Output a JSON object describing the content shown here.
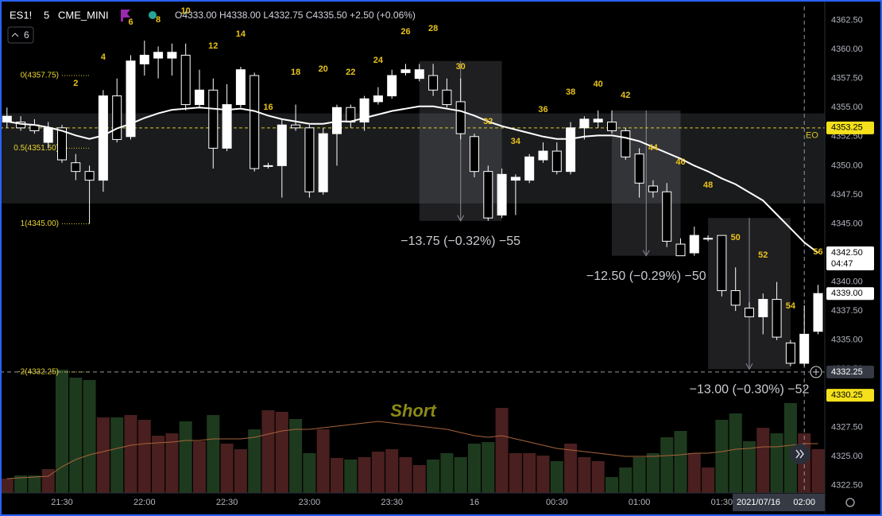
{
  "header": {
    "symbol": "ES1!",
    "interval": "5",
    "exchange": "CME_MINI",
    "ohlc": "O4333.00 H4338.00 L4332.75 C4335.50 +2.50 (+0.06%)",
    "indicators": "6"
  },
  "chart_data": {
    "type": "candlestick",
    "categories": [
      null,
      null,
      null,
      null,
      "21:30",
      null,
      null,
      null,
      null,
      null,
      "22:00",
      null,
      null,
      null,
      null,
      null,
      "22:30",
      null,
      null,
      null,
      null,
      null,
      "23:00",
      null,
      null,
      null,
      null,
      null,
      "23:30",
      null,
      null,
      null,
      null,
      null,
      "16",
      null,
      null,
      null,
      null,
      null,
      "00:30",
      null,
      null,
      null,
      null,
      null,
      "01:00",
      null,
      null,
      null,
      null,
      null,
      "01:30",
      null,
      null,
      null,
      null,
      null,
      "02:00",
      null
    ],
    "open": [
      4353.75,
      4353.75,
      4353.5,
      4352.0,
      4353.25,
      4350.25,
      4349.5,
      4348.75,
      4356.0,
      4352.5,
      4358.75,
      4359.25,
      4359.25,
      4359.5,
      4355.25,
      4356.5,
      4351.5,
      4355.25,
      4357.75,
      4350.0,
      4350.0,
      4353.5,
      4353.25,
      4347.75,
      4352.75,
      4355.0,
      4353.75,
      4355.5,
      4356.0,
      4358.0,
      4357.5,
      4357.75,
      4356.5,
      4355.5,
      4352.5,
      4349.5,
      4345.75,
      4348.75,
      4348.75,
      4350.5,
      4351.25,
      4349.5,
      4353.25,
      4353.75,
      4353.75,
      4353.0,
      4351.0,
      4348.25,
      4347.75,
      4343.25,
      4342.5,
      4343.75,
      4344.0,
      4339.25,
      4337.75,
      4337.0,
      4338.5,
      4334.75,
      4333.0,
      4335.75
    ],
    "high": [
      4355.0,
      4354.25,
      4354.0,
      4353.75,
      4353.5,
      4351.0,
      4350.0,
      4356.5,
      4357.5,
      4359.5,
      4360.75,
      4360.25,
      4360.5,
      4360.5,
      4358.25,
      4357.5,
      4357.0,
      4358.5,
      4358.0,
      4350.25,
      4354.0,
      4355.25,
      4353.5,
      4353.25,
      4355.25,
      4355.25,
      4356.0,
      4356.75,
      4358.25,
      4358.75,
      4358.75,
      4358.75,
      4357.5,
      4357.5,
      4352.75,
      4350.0,
      4349.75,
      4349.25,
      4351.0,
      4352.0,
      4352.0,
      4353.75,
      4354.25,
      4354.75,
      4354.75,
      4353.25,
      4351.5,
      4348.75,
      4348.5,
      4343.75,
      4344.75,
      4344.0,
      4344.0,
      4341.25,
      4338.25,
      4339.0,
      4340.0,
      4335.0,
      4338.0,
      4339.75
    ],
    "low": [
      4353.25,
      4353.0,
      4352.75,
      4351.5,
      4350.25,
      4348.75,
      4345.0,
      4347.75,
      4352.0,
      4352.25,
      4357.75,
      4357.5,
      4357.75,
      4354.75,
      4355.0,
      4349.75,
      4351.25,
      4355.0,
      4349.5,
      4349.75,
      4347.25,
      4353.0,
      4347.25,
      4347.5,
      4350.0,
      4353.25,
      4353.0,
      4355.25,
      4355.75,
      4357.75,
      4357.25,
      4356.0,
      4355.0,
      4352.25,
      4349.0,
      4345.25,
      4345.5,
      4345.75,
      4348.5,
      4350.25,
      4349.25,
      4349.25,
      4352.25,
      4353.25,
      4352.75,
      4350.5,
      4347.25,
      4347.25,
      4343.0,
      4342.25,
      4342.25,
      4343.5,
      4338.75,
      4337.5,
      4337.0,
      4335.5,
      4335.0,
      4332.75,
      4332.75,
      4335.5
    ],
    "close": [
      4354.25,
      4353.25,
      4353.0,
      4353.25,
      4350.5,
      4349.5,
      4348.75,
      4356.0,
      4352.25,
      4359.0,
      4359.5,
      4359.75,
      4359.75,
      4355.25,
      4356.5,
      4351.5,
      4355.25,
      4358.25,
      4349.75,
      4350.0,
      4353.5,
      4353.25,
      4347.75,
      4352.75,
      4355.0,
      4353.75,
      4355.75,
      4356.0,
      4357.75,
      4358.25,
      4358.25,
      4356.5,
      4355.25,
      4352.75,
      4349.5,
      4345.5,
      4349.25,
      4349.0,
      4350.75,
      4351.25,
      4349.5,
      4353.25,
      4354.0,
      4354.0,
      4353.0,
      4350.75,
      4348.5,
      4347.75,
      4343.5,
      4342.25,
      4344.0,
      4343.75,
      4339.25,
      4338.0,
      4337.0,
      4338.5,
      4335.25,
      4333.0,
      4335.5,
      4339.0
    ],
    "up_color": "#ffffff",
    "down_color": "#000000",
    "outline_color": "#ffffff",
    "ma": {
      "color": "#ffffff",
      "values": [
        4353.8,
        4353.6,
        4353.5,
        4353.3,
        4353.0,
        4352.6,
        4352.3,
        4352.6,
        4353.2,
        4353.6,
        4354.1,
        4354.5,
        4354.8,
        4354.9,
        4355.0,
        4354.9,
        4354.8,
        4354.9,
        4354.7,
        4354.3,
        4354.0,
        4353.8,
        4353.6,
        4353.6,
        4353.8,
        4353.8,
        4354.1,
        4354.4,
        4354.7,
        4354.9,
        4355.1,
        4355.1,
        4354.9,
        4354.7,
        4354.3,
        4353.8,
        4353.4,
        4353.1,
        4352.8,
        4352.5,
        4352.3,
        4352.3,
        4352.5,
        4352.6,
        4352.6,
        4352.4,
        4352.1,
        4351.6,
        4351.1,
        4350.6,
        4350.0,
        4349.5,
        4348.9,
        4348.4,
        4347.7,
        4347.0,
        4345.8,
        4344.6,
        4343.4,
        4342.5
      ]
    },
    "volume": {
      "up_color": "#4a1f1f",
      "down_color": "#1e3a1e",
      "vlim": [
        0,
        160
      ],
      "values": [
        18,
        22,
        22,
        30,
        155,
        145,
        142,
        95,
        95,
        98,
        92,
        72,
        75,
        90,
        65,
        98,
        62,
        55,
        80,
        104,
        102,
        93,
        50,
        80,
        44,
        42,
        45,
        52,
        55,
        45,
        35,
        42,
        50,
        45,
        62,
        64,
        107,
        50,
        50,
        47,
        40,
        62,
        45,
        40,
        20,
        32,
        45,
        50,
        70,
        78,
        50,
        32,
        92,
        100,
        65,
        82,
        75,
        113,
        75,
        55
      ],
      "ma": {
        "color": "#a8643a",
        "values": [
          18,
          19,
          20,
          21,
          33,
          42,
          48,
          52,
          56,
          60,
          62,
          63,
          64,
          66,
          66,
          68,
          68,
          68,
          70,
          74,
          78,
          80,
          80,
          82,
          84,
          86,
          88,
          90,
          88,
          86,
          84,
          82,
          80,
          76,
          72,
          70,
          72,
          68,
          64,
          60,
          56,
          54,
          52,
          50,
          48,
          46,
          46,
          46,
          47,
          48,
          50,
          50,
          52,
          55,
          56,
          58,
          58,
          60,
          62,
          62
        ]
      }
    },
    "ylim": [
      4321.85,
      4363.7
    ],
    "yticks": [
      {
        "value": 4322.5,
        "label": "4322.50"
      },
      {
        "value": 4325,
        "label": "4325.00"
      },
      {
        "value": 4327.5,
        "label": "4327.50"
      },
      {
        "value": 4330,
        "label": "4330.00"
      },
      {
        "value": 4332.5,
        "label": "4332.50"
      },
      {
        "value": 4335,
        "label": "4335.00"
      },
      {
        "value": 4337.5,
        "label": "4337.50"
      },
      {
        "value": 4340,
        "label": "4340.00"
      },
      {
        "value": 4342.5,
        "label": "4342.50"
      },
      {
        "value": 4345,
        "label": "4345.00"
      },
      {
        "value": 4347.5,
        "label": "4347.50"
      },
      {
        "value": 4350,
        "label": "4350.00"
      },
      {
        "value": 4352.5,
        "label": "4352.50"
      },
      {
        "value": 4355,
        "label": "4355.00"
      },
      {
        "value": 4357.5,
        "label": "4357.50"
      },
      {
        "value": 4360,
        "label": "4360.00"
      },
      {
        "value": 4362.5,
        "label": "4362.50"
      }
    ],
    "price_labels": [
      {
        "value": 4353.25,
        "label": "4353.25",
        "color": "#f5e11b"
      },
      {
        "value": 4342.5,
        "label": "4342.50",
        "color": "#ffffff"
      },
      {
        "value": 4339,
        "label": "4339.00",
        "color": "#ffffff"
      },
      {
        "value": 4330.25,
        "label": "4330.25",
        "color": "#f5e11b"
      }
    ],
    "countdown": "04:47",
    "fib_levels": [
      {
        "value": 4357.75,
        "label": "0(4357.75)"
      },
      {
        "value": 4351.5,
        "label": "0.5(4351.50)"
      },
      {
        "value": 4345,
        "label": "1(4345.00)"
      },
      {
        "value": 4332.25,
        "label": "-2(4332.25)"
      }
    ],
    "band": {
      "from": 4354.5,
      "to": 4346.75
    },
    "eo_line": {
      "value": 4353.25,
      "label": "EO",
      "color": "#d8c72a"
    },
    "measures": [
      {
        "from": 4359.0,
        "to": 4345.25,
        "label": "−13.75 (−0.32%) −55"
      },
      {
        "from": 4354.75,
        "to": 4342.25,
        "label": "−12.50 (−0.29%) −50"
      },
      {
        "from": 4345.5,
        "to": 4332.5,
        "label": "−13.00 (−0.30%) −52"
      }
    ],
    "bar_labels": [
      2,
      4,
      6,
      8,
      10,
      12,
      14,
      16,
      18,
      20,
      22,
      24,
      26,
      28,
      30,
      32,
      34,
      36,
      38,
      40,
      42,
      44,
      46,
      48,
      50,
      52,
      54,
      56
    ],
    "annotation": "Short",
    "crosshair": {
      "date": "2021/07/16",
      "price": {
        "value": 4332.25,
        "label": "4332.25"
      }
    }
  }
}
